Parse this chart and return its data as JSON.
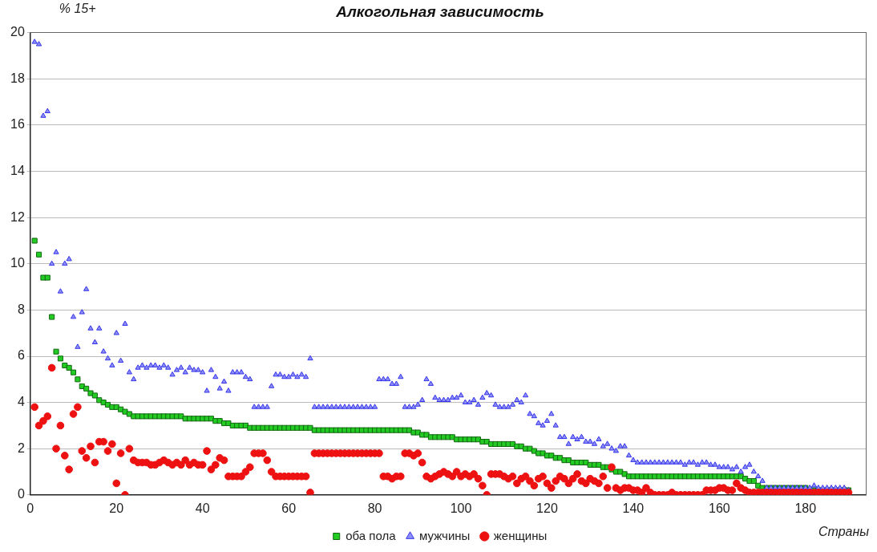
{
  "chart_data": {
    "type": "scatter",
    "title": "Алкогольная зависимость",
    "ylabel": "% 15+",
    "xlabel": "Страны",
    "x": [
      1,
      2,
      3,
      4,
      5,
      6,
      7,
      8,
      9,
      10,
      11,
      12,
      13,
      14,
      15,
      16,
      17,
      18,
      19,
      20,
      21,
      22,
      23,
      24,
      25,
      26,
      27,
      28,
      29,
      30,
      31,
      32,
      33,
      34,
      35,
      36,
      37,
      38,
      39,
      40,
      41,
      42,
      43,
      44,
      45,
      46,
      47,
      48,
      49,
      50,
      51,
      52,
      53,
      54,
      55,
      56,
      57,
      58,
      59,
      60,
      61,
      62,
      63,
      64,
      65,
      66,
      67,
      68,
      69,
      70,
      71,
      72,
      73,
      74,
      75,
      76,
      77,
      78,
      79,
      80,
      81,
      82,
      83,
      84,
      85,
      86,
      87,
      88,
      89,
      90,
      91,
      92,
      93,
      94,
      95,
      96,
      97,
      98,
      99,
      100,
      101,
      102,
      103,
      104,
      105,
      106,
      107,
      108,
      109,
      110,
      111,
      112,
      113,
      114,
      115,
      116,
      117,
      118,
      119,
      120,
      121,
      122,
      123,
      124,
      125,
      126,
      127,
      128,
      129,
      130,
      131,
      132,
      133,
      134,
      135,
      136,
      137,
      138,
      139,
      140,
      141,
      142,
      143,
      144,
      145,
      146,
      147,
      148,
      149,
      150,
      151,
      152,
      153,
      154,
      155,
      156,
      157,
      158,
      159,
      160,
      161,
      162,
      163,
      164,
      165,
      166,
      167,
      168,
      169,
      170,
      171,
      172,
      173,
      174,
      175,
      176,
      177,
      178,
      179,
      180,
      181,
      182,
      183,
      184,
      185,
      186,
      187,
      188,
      189,
      190
    ],
    "series": [
      {
        "name": "оба пола",
        "color": "#22cc22",
        "marker": "square",
        "values": [
          11.0,
          10.4,
          9.4,
          9.4,
          7.7,
          6.2,
          5.9,
          5.6,
          5.5,
          5.3,
          5.0,
          4.7,
          4.6,
          4.4,
          4.3,
          4.1,
          4.0,
          3.9,
          3.8,
          3.8,
          3.7,
          3.6,
          3.5,
          3.4,
          3.4,
          3.4,
          3.4,
          3.4,
          3.4,
          3.4,
          3.4,
          3.4,
          3.4,
          3.4,
          3.4,
          3.3,
          3.3,
          3.3,
          3.3,
          3.3,
          3.3,
          3.3,
          3.2,
          3.2,
          3.1,
          3.1,
          3.0,
          3.0,
          3.0,
          3.0,
          2.9,
          2.9,
          2.9,
          2.9,
          2.9,
          2.9,
          2.9,
          2.9,
          2.9,
          2.9,
          2.9,
          2.9,
          2.9,
          2.9,
          2.9,
          2.8,
          2.8,
          2.8,
          2.8,
          2.8,
          2.8,
          2.8,
          2.8,
          2.8,
          2.8,
          2.8,
          2.8,
          2.8,
          2.8,
          2.8,
          2.8,
          2.8,
          2.8,
          2.8,
          2.8,
          2.8,
          2.8,
          2.8,
          2.7,
          2.7,
          2.6,
          2.6,
          2.5,
          2.5,
          2.5,
          2.5,
          2.5,
          2.5,
          2.4,
          2.4,
          2.4,
          2.4,
          2.4,
          2.4,
          2.3,
          2.3,
          2.2,
          2.2,
          2.2,
          2.2,
          2.2,
          2.2,
          2.1,
          2.1,
          2.0,
          2.0,
          1.9,
          1.8,
          1.8,
          1.7,
          1.7,
          1.6,
          1.6,
          1.5,
          1.5,
          1.4,
          1.4,
          1.4,
          1.4,
          1.3,
          1.3,
          1.3,
          1.2,
          1.2,
          1.1,
          1.0,
          1.0,
          0.9,
          0.8,
          0.8,
          0.8,
          0.8,
          0.8,
          0.8,
          0.8,
          0.8,
          0.8,
          0.8,
          0.8,
          0.8,
          0.8,
          0.8,
          0.8,
          0.8,
          0.8,
          0.8,
          0.8,
          0.8,
          0.8,
          0.8,
          0.8,
          0.8,
          0.8,
          0.8,
          0.8,
          0.7,
          0.6,
          0.6,
          0.4,
          0.3,
          0.3,
          0.3,
          0.3,
          0.3,
          0.3,
          0.3,
          0.3,
          0.3,
          0.3,
          0.3,
          0.2,
          0.2,
          0.2,
          0.2,
          0.2,
          0.2,
          0.2,
          0.2,
          0.2,
          0.2
        ]
      },
      {
        "name": "мужчины",
        "color": "#3333ee",
        "marker": "triangle",
        "values": [
          19.6,
          19.5,
          16.4,
          16.6,
          10.0,
          10.5,
          8.8,
          10.0,
          10.2,
          7.7,
          6.4,
          7.9,
          8.9,
          7.2,
          6.6,
          7.2,
          6.2,
          5.9,
          5.6,
          7.0,
          5.8,
          7.4,
          5.3,
          5.0,
          5.5,
          5.6,
          5.5,
          5.6,
          5.6,
          5.5,
          5.6,
          5.5,
          5.2,
          5.4,
          5.5,
          5.3,
          5.5,
          5.4,
          5.4,
          5.3,
          4.5,
          5.4,
          5.1,
          4.6,
          4.9,
          4.5,
          5.3,
          5.3,
          5.3,
          5.1,
          5.0,
          3.8,
          3.8,
          3.8,
          3.8,
          4.7,
          5.2,
          5.2,
          5.1,
          5.1,
          5.2,
          5.1,
          5.2,
          5.1,
          5.9,
          3.8,
          3.8,
          3.8,
          3.8,
          3.8,
          3.8,
          3.8,
          3.8,
          3.8,
          3.8,
          3.8,
          3.8,
          3.8,
          3.8,
          3.8,
          5.0,
          5.0,
          5.0,
          4.8,
          4.8,
          5.1,
          3.8,
          3.8,
          3.8,
          3.9,
          4.1,
          5.0,
          4.8,
          4.2,
          4.1,
          4.1,
          4.1,
          4.2,
          4.2,
          4.3,
          4.0,
          4.0,
          4.1,
          3.9,
          4.2,
          4.4,
          4.3,
          3.9,
          3.8,
          3.8,
          3.8,
          3.9,
          4.1,
          4.0,
          4.3,
          3.5,
          3.4,
          3.1,
          3.0,
          3.2,
          3.5,
          3.0,
          2.5,
          2.5,
          2.2,
          2.5,
          2.4,
          2.5,
          2.3,
          2.3,
          2.2,
          2.4,
          2.1,
          2.2,
          2.0,
          1.9,
          2.1,
          2.1,
          1.7,
          1.5,
          1.4,
          1.4,
          1.4,
          1.4,
          1.4,
          1.4,
          1.4,
          1.4,
          1.4,
          1.4,
          1.4,
          1.3,
          1.4,
          1.4,
          1.3,
          1.4,
          1.4,
          1.3,
          1.3,
          1.2,
          1.2,
          1.2,
          1.1,
          1.2,
          1.0,
          1.2,
          1.3,
          1.0,
          0.8,
          0.6,
          0.3,
          0.3,
          0.3,
          0.3,
          0.3,
          0.3,
          0.3,
          0.3,
          0.3,
          0.3,
          0.3,
          0.4,
          0.3,
          0.3,
          0.3,
          0.3,
          0.3,
          0.3,
          0.3,
          0.2
        ]
      },
      {
        "name": "женщины",
        "color": "#ee1111",
        "marker": "circle",
        "values": [
          3.8,
          3.0,
          3.2,
          3.4,
          5.5,
          2.0,
          3.0,
          1.7,
          1.1,
          3.5,
          3.8,
          1.9,
          1.6,
          2.1,
          1.4,
          2.3,
          2.3,
          1.9,
          2.2,
          0.5,
          1.8,
          0.0,
          2.0,
          1.5,
          1.4,
          1.4,
          1.4,
          1.3,
          1.3,
          1.4,
          1.5,
          1.4,
          1.3,
          1.4,
          1.3,
          1.5,
          1.3,
          1.4,
          1.3,
          1.3,
          1.9,
          1.1,
          1.3,
          1.6,
          1.5,
          0.8,
          0.8,
          0.8,
          0.8,
          1.0,
          1.2,
          1.8,
          1.8,
          1.8,
          1.5,
          1.0,
          0.8,
          0.8,
          0.8,
          0.8,
          0.8,
          0.8,
          0.8,
          0.8,
          0.1,
          1.8,
          1.8,
          1.8,
          1.8,
          1.8,
          1.8,
          1.8,
          1.8,
          1.8,
          1.8,
          1.8,
          1.8,
          1.8,
          1.8,
          1.8,
          1.8,
          0.8,
          0.8,
          0.7,
          0.8,
          0.8,
          1.8,
          1.8,
          1.7,
          1.8,
          1.4,
          0.8,
          0.7,
          0.8,
          0.9,
          1.0,
          0.9,
          0.8,
          1.0,
          0.8,
          0.9,
          0.8,
          0.9,
          0.7,
          0.4,
          0.0,
          0.9,
          0.9,
          0.9,
          0.8,
          0.7,
          0.8,
          0.5,
          0.7,
          0.8,
          0.6,
          0.4,
          0.7,
          0.8,
          0.5,
          0.3,
          0.6,
          0.8,
          0.7,
          0.5,
          0.7,
          0.9,
          0.6,
          0.5,
          0.7,
          0.6,
          0.5,
          0.8,
          0.3,
          1.2,
          0.3,
          0.2,
          0.3,
          0.3,
          0.2,
          0.2,
          0.1,
          0.3,
          0.1,
          0.0,
          0.0,
          0.0,
          0.0,
          0.1,
          0.0,
          0.0,
          0.0,
          0.0,
          0.0,
          0.0,
          0.0,
          0.2,
          0.2,
          0.2,
          0.3,
          0.3,
          0.2,
          0.2,
          0.5,
          0.3,
          0.2,
          0.1,
          0.1,
          0.1,
          0.1,
          0.1,
          0.1,
          0.1,
          0.1,
          0.1,
          0.1,
          0.1,
          0.1,
          0.1,
          0.1,
          0.1,
          0.1,
          0.1,
          0.1,
          0.1,
          0.1,
          0.1,
          0.1,
          0.1,
          0.1
        ]
      }
    ],
    "xlim": [
      0,
      194
    ],
    "xticks": [
      0,
      20,
      40,
      60,
      80,
      100,
      120,
      140,
      160,
      180
    ],
    "ylim": [
      0,
      20
    ],
    "yticks": [
      0,
      2,
      4,
      6,
      8,
      10,
      12,
      14,
      16,
      18,
      20
    ],
    "grid": "y",
    "legend": "bottom"
  }
}
